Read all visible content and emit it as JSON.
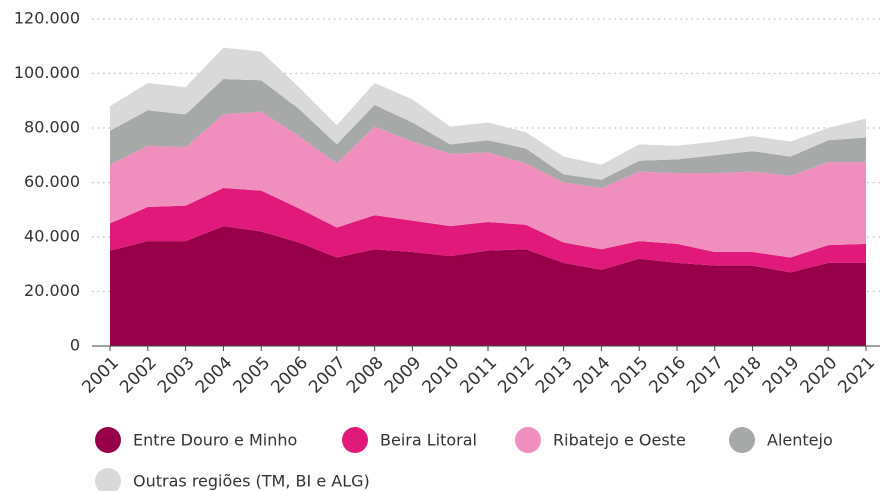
{
  "chart_data": {
    "type": "stacked_area",
    "categories": [
      "2001",
      "2002",
      "2003",
      "2004",
      "2005",
      "2006",
      "2007",
      "2008",
      "2009",
      "2010",
      "2011",
      "2012",
      "2013",
      "2014",
      "2015",
      "2016",
      "2017",
      "2018",
      "2019",
      "2020",
      "2021"
    ],
    "series": [
      {
        "name": "Entre Douro e Minho",
        "color": "#970048",
        "values": [
          35000,
          38500,
          38500,
          44000,
          42000,
          38000,
          32500,
          35500,
          34500,
          33000,
          35000,
          35500,
          30500,
          28000,
          32000,
          30500,
          29500,
          29500,
          27000,
          30500,
          30500
        ]
      },
      {
        "name": "Beira Litoral",
        "color": "#e0197a",
        "values": [
          10000,
          12500,
          13000,
          14000,
          15000,
          12500,
          11000,
          12500,
          11500,
          11000,
          10500,
          9000,
          7500,
          7500,
          6500,
          7000,
          5000,
          5000,
          5500,
          6500,
          7000
        ]
      },
      {
        "name": "Ribatejo e Oeste",
        "color": "#f08fbd",
        "values": [
          21500,
          22500,
          21500,
          27000,
          29000,
          26500,
          23500,
          32500,
          29000,
          26500,
          25500,
          22500,
          22000,
          22500,
          25500,
          26000,
          29000,
          29500,
          30000,
          30500,
          30000
        ]
      },
      {
        "name": "Alentejo",
        "color": "#a7a9a9",
        "values": [
          12500,
          13000,
          12000,
          13000,
          11500,
          10000,
          7000,
          8000,
          7000,
          3500,
          4500,
          5500,
          3000,
          3000,
          4000,
          5000,
          6500,
          7500,
          7000,
          8000,
          9000
        ]
      },
      {
        "name": "Outras regiões (TM, BI e ALG)",
        "color": "#d9d9da",
        "values": [
          9000,
          10000,
          10000,
          11500,
          10500,
          8000,
          7000,
          8000,
          8500,
          6500,
          6500,
          6000,
          6500,
          5500,
          6000,
          5000,
          5000,
          5500,
          5500,
          4500,
          7000
        ]
      }
    ],
    "ylim": [
      0,
      120000
    ],
    "yticks": [
      0,
      {
        "value": 20000,
        "label": "20.000"
      },
      {
        "value": 40000,
        "label": "40.000"
      },
      {
        "value": 60000,
        "label": "60.000"
      },
      {
        "value": 80000,
        "label": "80.000"
      },
      {
        "value": 100000,
        "label": "100.000"
      },
      {
        "value": 120000,
        "label": "120.000"
      }
    ],
    "grid": true,
    "legend": "bottom"
  }
}
